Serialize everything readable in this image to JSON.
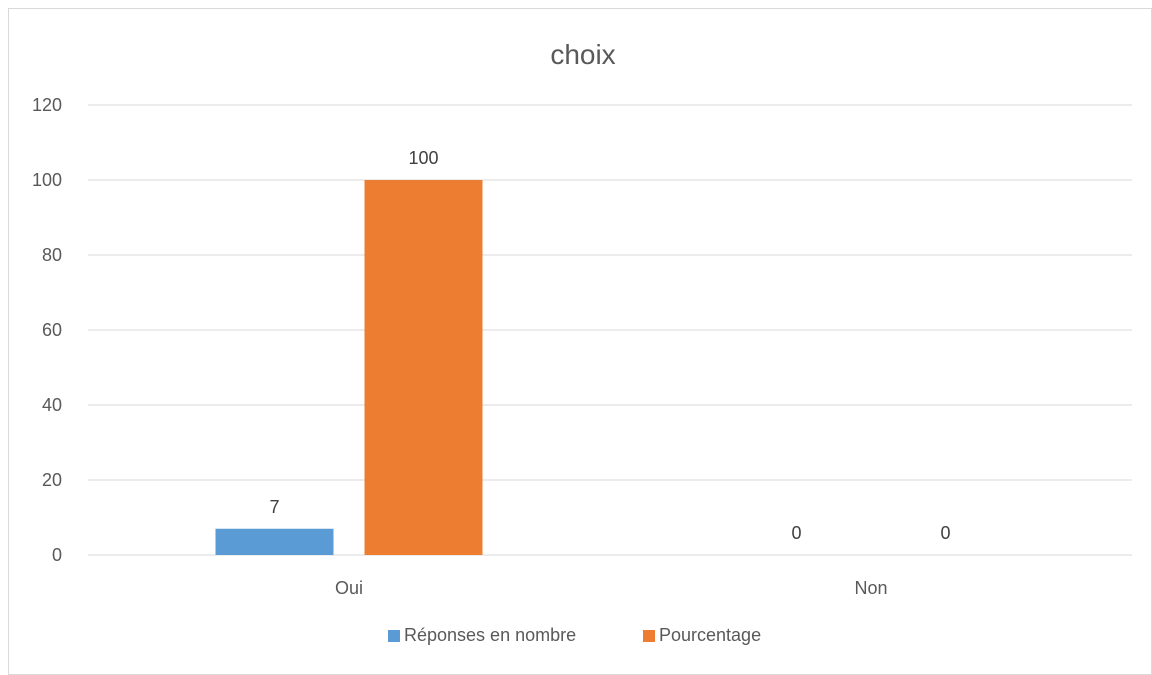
{
  "chart_data": {
    "type": "bar",
    "title": "choix",
    "categories": [
      "Oui",
      "Non"
    ],
    "series": [
      {
        "name": "Réponses en nombre",
        "values": [
          7,
          0
        ],
        "color": "#5b9bd5"
      },
      {
        "name": "Pourcentage",
        "values": [
          100,
          0
        ],
        "color": "#ed7d31"
      }
    ],
    "ylim": [
      0,
      120
    ],
    "yticks": [
      0,
      20,
      40,
      60,
      80,
      100,
      120
    ],
    "data_labels": true,
    "grid": true,
    "legend_position": "bottom",
    "gridline_color": "#d9d9d9"
  }
}
